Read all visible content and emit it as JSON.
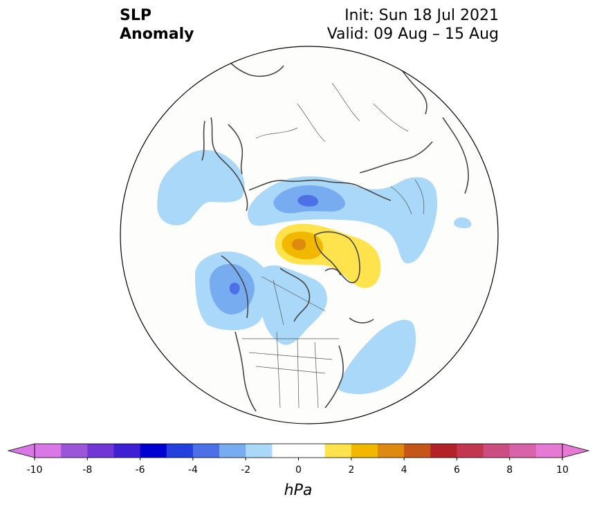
{
  "header": {
    "variable_line1": "SLP",
    "variable_line2": "Anomaly",
    "init": "Init: Sun 18 Jul 2021",
    "valid": "Valid: 09 Aug – 15 Aug"
  },
  "colorbar": {
    "unit": "hPa",
    "tick_labels": [
      "-10",
      "-8",
      "-6",
      "-4",
      "-2",
      "0",
      "2",
      "4",
      "6",
      "8",
      "10"
    ],
    "colors": [
      "#d977e6",
      "#9b55d9",
      "#7137d6",
      "#3f1fd4",
      "#0000d0",
      "#2440dc",
      "#4e70e6",
      "#78acf0",
      "#aad8f8",
      "#ffffff",
      "#ffffff",
      "#ffe34d",
      "#f2b800",
      "#de8a10",
      "#c55519",
      "#b22226",
      "#c23650",
      "#cc4e80",
      "#d764aa",
      "#e579d4"
    ],
    "min_color": "#d977e6",
    "max_color": "#e579d4"
  },
  "map": {
    "projection": "north-polar-stereographic",
    "features": [
      "Positive anomaly 2-4 hPa over Arctic Canada / Greenland",
      "Negative anomaly -4 to -6 hPa over Gulf of Alaska",
      "Negative anomaly -4 to -6 hPa over Siberia",
      "Negative anomaly over Scandinavia / W Russia",
      "Negative anomaly over NW Atlantic"
    ]
  }
}
